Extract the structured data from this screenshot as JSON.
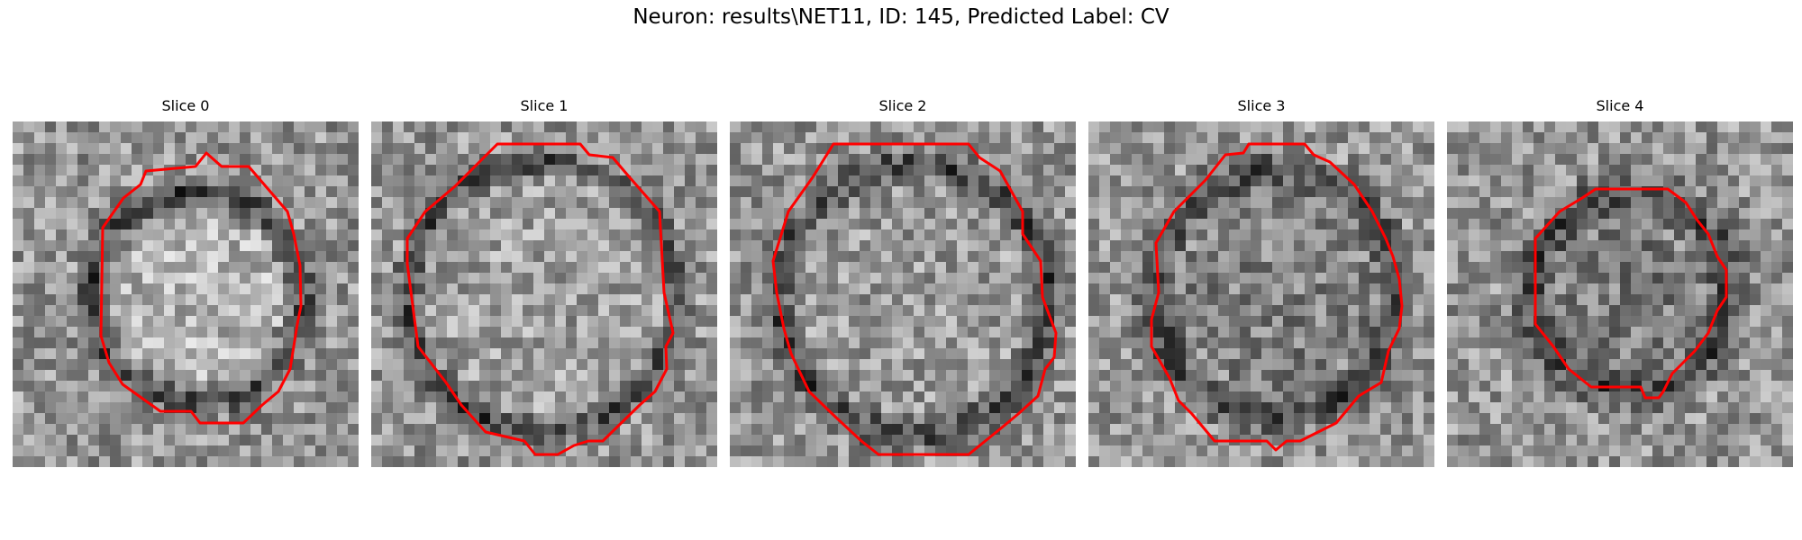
{
  "figure": {
    "title": "Neuron: results\\NET11, ID: 145, Predicted Label: CV",
    "contour_color": "#ff0000",
    "slices": [
      {
        "title": "Slice 0"
      },
      {
        "title": "Slice 1"
      },
      {
        "title": "Slice 2"
      },
      {
        "title": "Slice 3"
      },
      {
        "title": "Slice 4"
      }
    ]
  }
}
